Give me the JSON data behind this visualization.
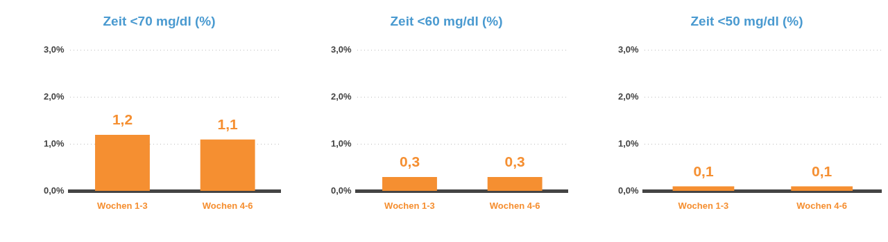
{
  "chart_data": [
    {
      "type": "bar",
      "title": "Zeit <70 mg/dl (%)",
      "categories": [
        "Wochen 1-3",
        "Wochen 4-6"
      ],
      "values": [
        1.2,
        1.1
      ],
      "value_labels": [
        "1,2",
        "1,1"
      ],
      "color": "#f58f31",
      "ylim": [
        0,
        3
      ],
      "yticks": [
        {
          "value": 0,
          "label": "0,0%"
        },
        {
          "value": 1,
          "label": "1,0%"
        },
        {
          "value": 2,
          "label": "2,0%"
        },
        {
          "value": 3,
          "label": "3,0%"
        }
      ],
      "grid": "y"
    },
    {
      "type": "bar",
      "title": "Zeit <60 mg/dl (%)",
      "categories": [
        "Wochen 1-3",
        "Wochen 4-6"
      ],
      "values": [
        0.3,
        0.3
      ],
      "value_labels": [
        "0,3",
        "0,3"
      ],
      "color": "#f58f31",
      "ylim": [
        0,
        3
      ],
      "yticks": [
        {
          "value": 0,
          "label": "0,0%"
        },
        {
          "value": 1,
          "label": "1,0%"
        },
        {
          "value": 2,
          "label": "2,0%"
        },
        {
          "value": 3,
          "label": "3,0%"
        }
      ],
      "grid": "y"
    },
    {
      "type": "bar",
      "title": "Zeit <50 mg/dl (%)",
      "categories": [
        "Wochen 1-3",
        "Wochen 4-6"
      ],
      "values": [
        0.1,
        0.1
      ],
      "value_labels": [
        "0,1",
        "0,1"
      ],
      "color": "#f58f31",
      "ylim": [
        0,
        3
      ],
      "yticks": [
        {
          "value": 0,
          "label": "0,0%"
        },
        {
          "value": 1,
          "label": "1,0%"
        },
        {
          "value": 2,
          "label": "2,0%"
        },
        {
          "value": 3,
          "label": "3,0%"
        }
      ],
      "grid": "y"
    }
  ]
}
